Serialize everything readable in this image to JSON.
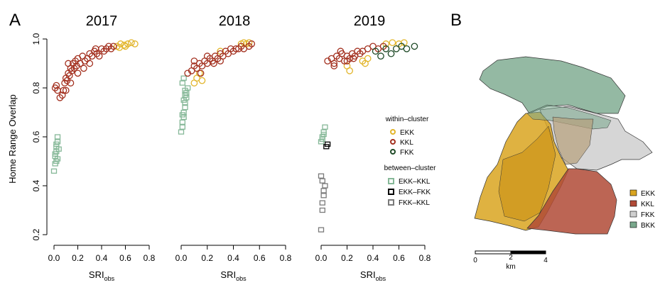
{
  "panels": {
    "a_label": "A",
    "b_label": "B"
  },
  "axes": {
    "ylabel": "Home Range Overlap",
    "xlabel_main": "SRI",
    "xlabel_sub": "obs",
    "yticks": [
      "0.2",
      "0.4",
      "0.6",
      "0.8",
      "1.0"
    ],
    "xticks": [
      "0.0",
      "0.2",
      "0.4",
      "0.6",
      "0.8"
    ]
  },
  "legend": {
    "within_title": "within–cluster",
    "within": [
      {
        "label": "EKK",
        "color": "#e2b52a"
      },
      {
        "label": "KKL",
        "color": "#a3301f"
      },
      {
        "label": "FKK",
        "color": "#1f4a27"
      }
    ],
    "between_title": "between–cluster",
    "between": [
      {
        "label": "EKK–KKL",
        "color": "#86b898"
      },
      {
        "label": "EKK–FKK",
        "color": "#000000"
      },
      {
        "label": "FKK–KKL",
        "color": "#7a7a7a"
      }
    ]
  },
  "map": {
    "legend": [
      {
        "label": "EKK",
        "color": "#d9a520"
      },
      {
        "label": "KKL",
        "color": "#b04a36"
      },
      {
        "label": "FKK",
        "color": "#cfcfcf"
      },
      {
        "label": "BKK",
        "color": "#79a88c"
      }
    ],
    "scale_labels": [
      "0",
      "2",
      "4"
    ],
    "scale_unit": "km"
  },
  "chart_data": [
    {
      "type": "scatter",
      "title": "2017",
      "xlabel": "SRI obs",
      "ylabel": "Home Range Overlap",
      "xlim": [
        0,
        0.8
      ],
      "ylim": [
        0.2,
        1.0
      ],
      "series": [
        {
          "name": "EKK",
          "kind": "within",
          "x": [
            0.53,
            0.56,
            0.59,
            0.62,
            0.65,
            0.68,
            0.55,
            0.6
          ],
          "y": [
            0.97,
            0.98,
            0.975,
            0.98,
            0.985,
            0.98,
            0.965,
            0.97
          ]
        },
        {
          "name": "KKL",
          "kind": "within",
          "x": [
            0.01,
            0.02,
            0.03,
            0.05,
            0.07,
            0.08,
            0.09,
            0.1,
            0.11,
            0.12,
            0.13,
            0.14,
            0.15,
            0.16,
            0.17,
            0.18,
            0.19,
            0.2,
            0.22,
            0.24,
            0.26,
            0.28,
            0.3,
            0.32,
            0.34,
            0.36,
            0.38,
            0.4,
            0.42,
            0.44,
            0.46,
            0.48,
            0.5,
            0.1,
            0.12,
            0.14,
            0.2,
            0.25,
            0.3,
            0.35
          ],
          "y": [
            0.8,
            0.81,
            0.79,
            0.76,
            0.77,
            0.79,
            0.82,
            0.84,
            0.83,
            0.86,
            0.85,
            0.88,
            0.87,
            0.9,
            0.88,
            0.91,
            0.89,
            0.92,
            0.9,
            0.93,
            0.91,
            0.92,
            0.94,
            0.93,
            0.95,
            0.94,
            0.93,
            0.96,
            0.95,
            0.96,
            0.97,
            0.96,
            0.97,
            0.79,
            0.9,
            0.82,
            0.86,
            0.88,
            0.9,
            0.96
          ]
        },
        {
          "name": "EKK–KKL",
          "kind": "between",
          "x": [
            0.0,
            0.01,
            0.01,
            0.02,
            0.02,
            0.03,
            0.03,
            0.04,
            0.01,
            0.02,
            0.03,
            0.02
          ],
          "y": [
            0.46,
            0.49,
            0.52,
            0.54,
            0.56,
            0.58,
            0.6,
            0.55,
            0.53,
            0.5,
            0.51,
            0.57
          ]
        }
      ]
    },
    {
      "type": "scatter",
      "title": "2018",
      "xlabel": "SRI obs",
      "ylabel": "Home Range Overlap",
      "xlim": [
        0,
        0.8
      ],
      "ylim": [
        0.2,
        1.0
      ],
      "series": [
        {
          "name": "EKK",
          "kind": "within",
          "x": [
            0.1,
            0.12,
            0.14,
            0.16,
            0.3,
            0.46,
            0.48,
            0.5,
            0.52
          ],
          "y": [
            0.82,
            0.84,
            0.86,
            0.83,
            0.95,
            0.98,
            0.985,
            0.98,
            0.985
          ]
        },
        {
          "name": "KKL",
          "kind": "within",
          "x": [
            0.05,
            0.08,
            0.1,
            0.12,
            0.14,
            0.16,
            0.18,
            0.2,
            0.22,
            0.24,
            0.26,
            0.28,
            0.3,
            0.32,
            0.34,
            0.36,
            0.38,
            0.4,
            0.42,
            0.44,
            0.46,
            0.48,
            0.52,
            0.54,
            0.1,
            0.15,
            0.2,
            0.25,
            0.3
          ],
          "y": [
            0.86,
            0.87,
            0.89,
            0.88,
            0.9,
            0.89,
            0.91,
            0.9,
            0.92,
            0.91,
            0.93,
            0.92,
            0.94,
            0.93,
            0.95,
            0.94,
            0.96,
            0.95,
            0.96,
            0.96,
            0.97,
            0.96,
            0.97,
            0.98,
            0.91,
            0.86,
            0.93,
            0.9,
            0.91
          ]
        },
        {
          "name": "EKK–KKL",
          "kind": "between",
          "x": [
            0.0,
            0.01,
            0.01,
            0.02,
            0.02,
            0.03,
            0.03,
            0.04,
            0.04,
            0.05,
            0.01,
            0.02,
            0.03,
            0.02,
            0.01,
            0.03
          ],
          "y": [
            0.62,
            0.64,
            0.66,
            0.68,
            0.7,
            0.72,
            0.74,
            0.76,
            0.78,
            0.8,
            0.82,
            0.84,
            0.79,
            0.75,
            0.69,
            0.77
          ]
        }
      ]
    },
    {
      "type": "scatter",
      "title": "2019",
      "xlabel": "SRI obs",
      "ylabel": "Home Range Overlap",
      "xlim": [
        0,
        0.8
      ],
      "ylim": [
        0.2,
        1.0
      ],
      "series": [
        {
          "name": "EKK",
          "kind": "within",
          "x": [
            0.2,
            0.22,
            0.32,
            0.34,
            0.36,
            0.5,
            0.55,
            0.6,
            0.64
          ],
          "y": [
            0.89,
            0.87,
            0.91,
            0.9,
            0.92,
            0.98,
            0.985,
            0.98,
            0.985
          ]
        },
        {
          "name": "KKL",
          "kind": "within",
          "x": [
            0.05,
            0.08,
            0.1,
            0.12,
            0.14,
            0.16,
            0.18,
            0.2,
            0.22,
            0.24,
            0.26,
            0.28,
            0.3,
            0.32,
            0.36,
            0.4,
            0.44,
            0.48,
            0.1,
            0.15,
            0.2,
            0.25
          ],
          "y": [
            0.91,
            0.92,
            0.9,
            0.93,
            0.92,
            0.94,
            0.91,
            0.93,
            0.92,
            0.94,
            0.93,
            0.95,
            0.94,
            0.95,
            0.96,
            0.97,
            0.96,
            0.97,
            0.89,
            0.95,
            0.91,
            0.92
          ]
        },
        {
          "name": "FKK",
          "kind": "within",
          "x": [
            0.42,
            0.46,
            0.5,
            0.54,
            0.58,
            0.62,
            0.66,
            0.72
          ],
          "y": [
            0.95,
            0.93,
            0.96,
            0.94,
            0.96,
            0.97,
            0.96,
            0.97
          ]
        },
        {
          "name": "EKK–KKL",
          "kind": "between",
          "x": [
            0.0,
            0.01,
            0.02,
            0.03,
            0.01,
            0.02
          ],
          "y": [
            0.58,
            0.6,
            0.62,
            0.64,
            0.59,
            0.61
          ]
        },
        {
          "name": "EKK–FKK",
          "kind": "between",
          "x": [
            0.04,
            0.05
          ],
          "y": [
            0.56,
            0.57
          ]
        },
        {
          "name": "FKK–KKL",
          "kind": "between",
          "x": [
            0.0,
            0.01,
            0.01,
            0.02,
            0.02,
            0.03,
            0.01,
            0.0
          ],
          "y": [
            0.22,
            0.3,
            0.33,
            0.36,
            0.38,
            0.4,
            0.42,
            0.44
          ]
        }
      ]
    }
  ]
}
